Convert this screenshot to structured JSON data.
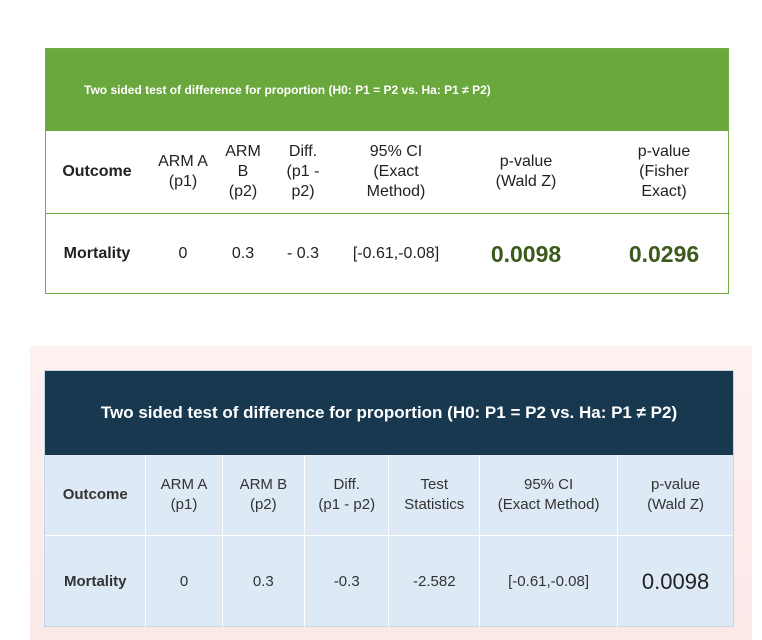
{
  "table1": {
    "title": "Two sided test of difference for proportion (H0: P1 = P2 vs. Ha: P1 ≠ P2)",
    "headers": {
      "outcome": "Outcome",
      "arm_a": [
        "ARM A",
        "(p1)"
      ],
      "arm_b": [
        "ARM B",
        "(p2)"
      ],
      "diff": [
        "Diff.",
        "(p1 -",
        "p2)"
      ],
      "ci": [
        "95% CI",
        "(Exact",
        "Method)"
      ],
      "p_wald": [
        "p-value",
        "(Wald Z)"
      ],
      "p_fisher": [
        "p-value",
        "(Fisher",
        "Exact)"
      ]
    },
    "row": {
      "outcome": "Mortality",
      "arm_a": "0",
      "arm_b": "0.3",
      "diff": "- 0.3",
      "ci": "[-0.61,-0.08]",
      "p_wald": "0.0098",
      "p_fisher": "0.0296"
    },
    "colors": {
      "header_bg": "#6aa83e",
      "pvalue_text": "#3b5a1b"
    }
  },
  "table2": {
    "title": "Two sided test of difference for proportion (H0: P1 = P2 vs. Ha: P1 ≠ P2)",
    "headers": {
      "outcome": "Outcome",
      "arm_a": [
        "ARM A",
        "(p1)"
      ],
      "arm_b": [
        "ARM B",
        "(p2)"
      ],
      "diff": [
        "Diff.",
        "(p1 - p2)"
      ],
      "test": [
        "Test",
        "Statistics"
      ],
      "ci": [
        "95% CI",
        "(Exact Method)"
      ],
      "p_wald": [
        "p-value",
        "(Wald Z)"
      ]
    },
    "row": {
      "outcome": "Mortality",
      "arm_a": "0",
      "arm_b": "0.3",
      "diff": "-0.3",
      "test": "-2.582",
      "ci": "[-0.61,-0.08]",
      "p_wald": "0.0098"
    },
    "colors": {
      "header_bg": "#17384f",
      "cell_bg": "#dde9f4"
    }
  }
}
